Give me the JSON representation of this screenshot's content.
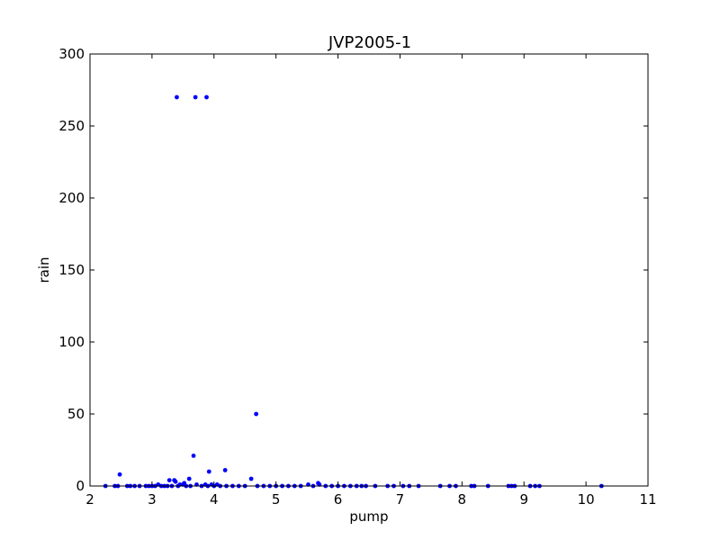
{
  "chart_data": {
    "type": "scatter",
    "title": "JVP2005-1",
    "xlabel": "pump",
    "ylabel": "rain",
    "xlim": [
      2,
      11
    ],
    "ylim": [
      0,
      300
    ],
    "xticks": [
      "2",
      "3",
      "4",
      "5",
      "6",
      "7",
      "8",
      "9",
      "10",
      "11"
    ],
    "yticks": [
      "0",
      "50",
      "100",
      "150",
      "200",
      "250",
      "300"
    ],
    "grid": false,
    "marker_color": "#0000ff",
    "points": [
      {
        "x": 3.4,
        "y": 270
      },
      {
        "x": 3.7,
        "y": 270
      },
      {
        "x": 3.88,
        "y": 270
      },
      {
        "x": 4.68,
        "y": 50
      },
      {
        "x": 3.67,
        "y": 21
      },
      {
        "x": 4.18,
        "y": 11
      },
      {
        "x": 3.92,
        "y": 10
      },
      {
        "x": 2.48,
        "y": 8
      },
      {
        "x": 4.6,
        "y": 5
      },
      {
        "x": 3.6,
        "y": 5
      },
      {
        "x": 3.28,
        "y": 4
      },
      {
        "x": 3.36,
        "y": 4
      },
      {
        "x": 3.38,
        "y": 3
      },
      {
        "x": 3.1,
        "y": 1
      },
      {
        "x": 3.5,
        "y": 1
      },
      {
        "x": 3.52,
        "y": 2
      },
      {
        "x": 3.45,
        "y": 1
      },
      {
        "x": 3.72,
        "y": 1
      },
      {
        "x": 3.86,
        "y": 1
      },
      {
        "x": 3.96,
        "y": 1
      },
      {
        "x": 4.05,
        "y": 1
      },
      {
        "x": 5.52,
        "y": 1
      },
      {
        "x": 5.68,
        "y": 2
      },
      {
        "x": 5.7,
        "y": 1
      },
      {
        "x": 2.25,
        "y": 0
      },
      {
        "x": 2.4,
        "y": 0
      },
      {
        "x": 2.45,
        "y": 0
      },
      {
        "x": 2.6,
        "y": 0
      },
      {
        "x": 2.65,
        "y": 0
      },
      {
        "x": 2.72,
        "y": 0
      },
      {
        "x": 2.8,
        "y": 0
      },
      {
        "x": 2.9,
        "y": 0
      },
      {
        "x": 2.95,
        "y": 0
      },
      {
        "x": 3.0,
        "y": 0
      },
      {
        "x": 3.05,
        "y": 0
      },
      {
        "x": 3.15,
        "y": 0
      },
      {
        "x": 3.2,
        "y": 0
      },
      {
        "x": 3.25,
        "y": 0
      },
      {
        "x": 3.32,
        "y": 0
      },
      {
        "x": 3.42,
        "y": 0
      },
      {
        "x": 3.55,
        "y": 0
      },
      {
        "x": 3.62,
        "y": 0
      },
      {
        "x": 3.8,
        "y": 0
      },
      {
        "x": 3.9,
        "y": 0
      },
      {
        "x": 4.0,
        "y": 0
      },
      {
        "x": 4.1,
        "y": 0
      },
      {
        "x": 4.2,
        "y": 0
      },
      {
        "x": 4.3,
        "y": 0
      },
      {
        "x": 4.4,
        "y": 0
      },
      {
        "x": 4.5,
        "y": 0
      },
      {
        "x": 4.7,
        "y": 0
      },
      {
        "x": 4.8,
        "y": 0
      },
      {
        "x": 4.9,
        "y": 0
      },
      {
        "x": 5.0,
        "y": 0
      },
      {
        "x": 5.1,
        "y": 0
      },
      {
        "x": 5.2,
        "y": 0
      },
      {
        "x": 5.3,
        "y": 0
      },
      {
        "x": 5.4,
        "y": 0
      },
      {
        "x": 5.6,
        "y": 0
      },
      {
        "x": 5.8,
        "y": 0
      },
      {
        "x": 5.9,
        "y": 0
      },
      {
        "x": 6.0,
        "y": 0
      },
      {
        "x": 6.1,
        "y": 0
      },
      {
        "x": 6.2,
        "y": 0
      },
      {
        "x": 6.3,
        "y": 0
      },
      {
        "x": 6.38,
        "y": 0
      },
      {
        "x": 6.45,
        "y": 0
      },
      {
        "x": 6.6,
        "y": 0
      },
      {
        "x": 6.8,
        "y": 0
      },
      {
        "x": 6.9,
        "y": 0
      },
      {
        "x": 7.05,
        "y": 0
      },
      {
        "x": 7.15,
        "y": 0
      },
      {
        "x": 7.3,
        "y": 0
      },
      {
        "x": 7.65,
        "y": 0
      },
      {
        "x": 7.8,
        "y": 0
      },
      {
        "x": 7.9,
        "y": 0
      },
      {
        "x": 8.15,
        "y": 0
      },
      {
        "x": 8.2,
        "y": 0
      },
      {
        "x": 8.42,
        "y": 0
      },
      {
        "x": 8.75,
        "y": 0
      },
      {
        "x": 8.8,
        "y": 0
      },
      {
        "x": 8.85,
        "y": 0
      },
      {
        "x": 9.1,
        "y": 0
      },
      {
        "x": 9.18,
        "y": 0
      },
      {
        "x": 9.25,
        "y": 0
      },
      {
        "x": 10.25,
        "y": 0
      }
    ]
  }
}
